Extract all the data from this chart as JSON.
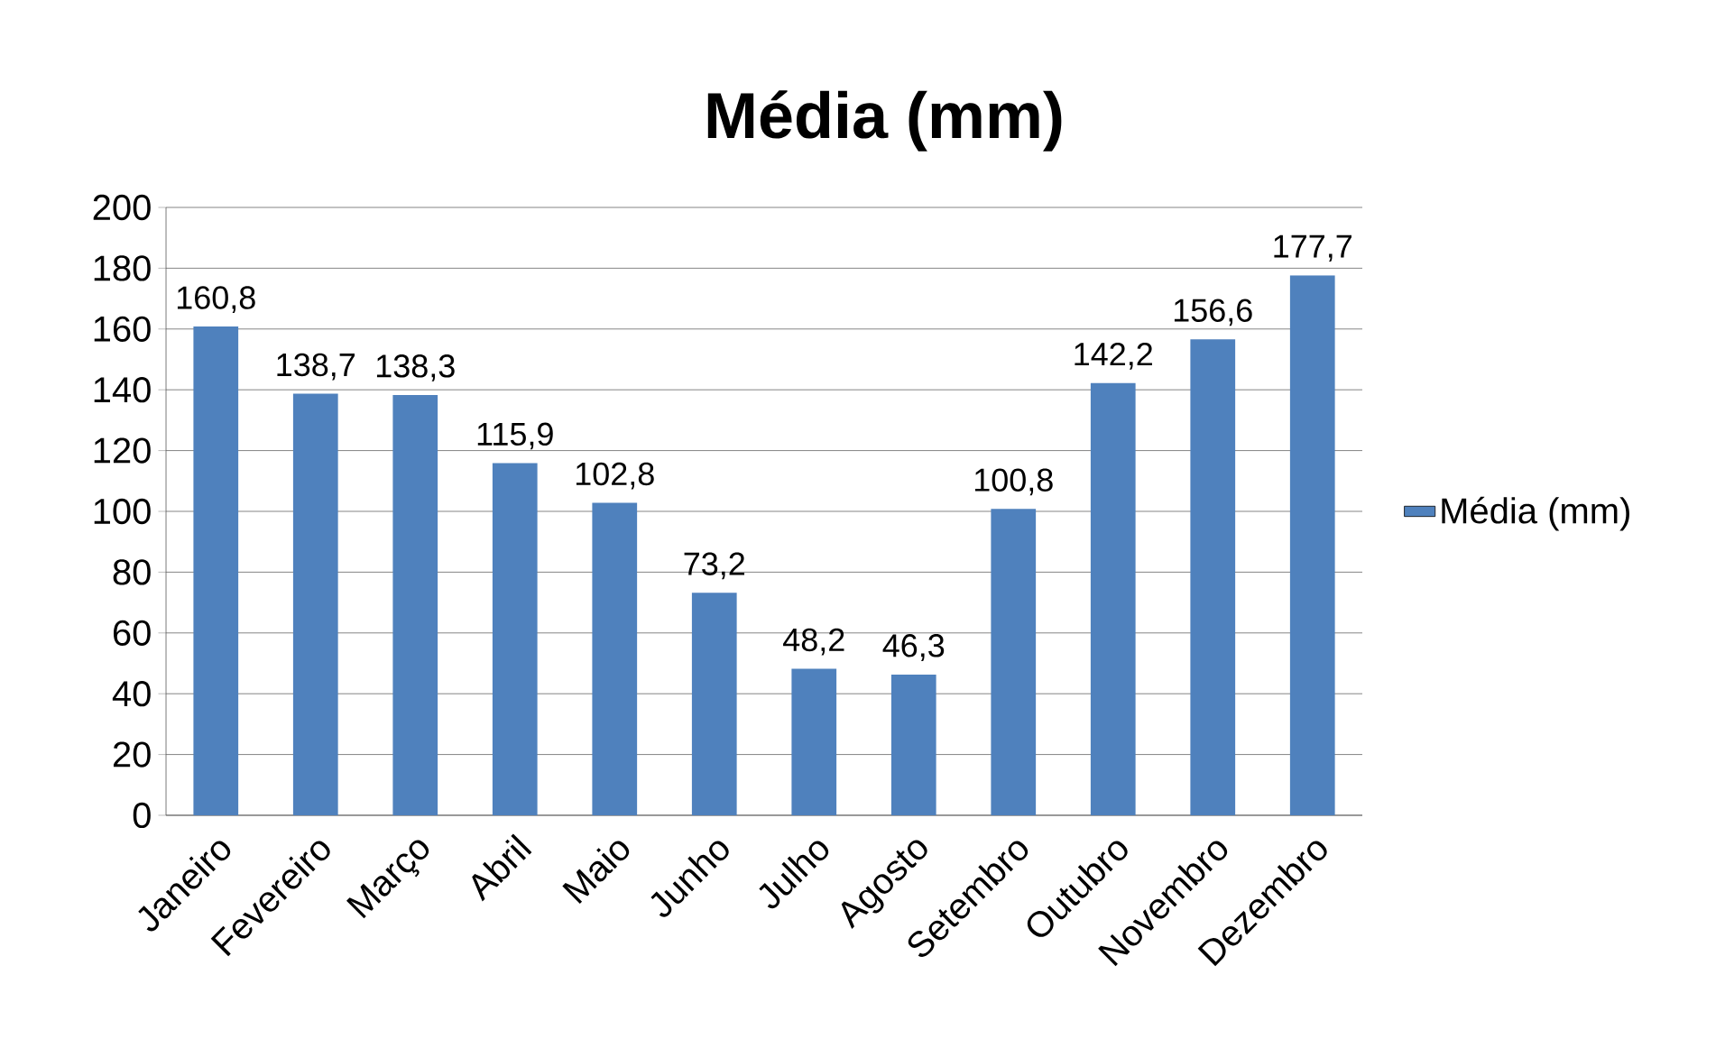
{
  "chart_data": {
    "type": "bar",
    "title": "Média (mm)",
    "categories": [
      "Janeiro",
      "Fevereiro",
      "Março",
      "Abril",
      "Maio",
      "Junho",
      "Julho",
      "Agosto",
      "Setembro",
      "Outubro",
      "Novembro",
      "Dezembro"
    ],
    "series": [
      {
        "name": "Média (mm)",
        "color": "#4f81bd",
        "values": [
          160.8,
          138.7,
          138.3,
          115.9,
          102.8,
          73.2,
          48.2,
          46.3,
          100.8,
          142.2,
          156.6,
          177.7
        ],
        "value_labels": [
          "160,8",
          "138,7",
          "138,3",
          "115,9",
          "102,8",
          "73,2",
          "48,2",
          "46,3",
          "100,8",
          "142,2",
          "156,6",
          "177,7"
        ]
      }
    ],
    "ylim": [
      0,
      200
    ],
    "yticks": [
      0,
      20,
      40,
      60,
      80,
      100,
      120,
      140,
      160,
      180,
      200
    ],
    "grid": "y",
    "legend": "right"
  }
}
